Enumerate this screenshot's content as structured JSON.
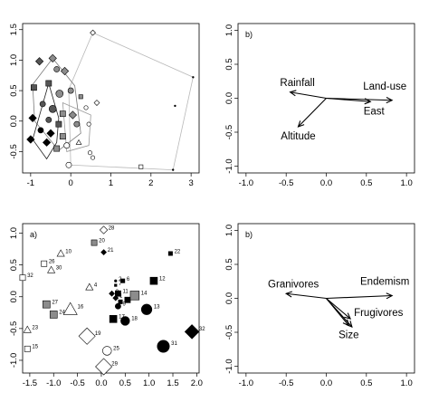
{
  "chart_data": [
    {
      "type": "scatter",
      "panel_label": "",
      "xlim": [
        -1.2,
        3.2
      ],
      "ylim": [
        -0.85,
        1.6
      ],
      "x_ticks": [
        -1,
        0,
        1,
        2,
        3
      ],
      "y_ticks": [
        -0.5,
        0.0,
        0.5,
        1.0,
        1.5
      ],
      "x_tick_labels": [
        "-1",
        "0",
        "1",
        "2",
        "3"
      ],
      "y_tick_labels": [
        "-0.5",
        "0.0",
        "0.5",
        "1.0",
        "1.5"
      ],
      "hulls": [
        {
          "shade": "light",
          "points": [
            [
              0.55,
              1.45
            ],
            [
              3.05,
              0.72
            ],
            [
              2.55,
              -0.8
            ],
            [
              0.0,
              -0.72
            ],
            [
              -0.05,
              0.52
            ]
          ]
        },
        {
          "shade": "gray",
          "points": [
            [
              -0.45,
              1.03
            ],
            [
              0.1,
              0.58
            ],
            [
              0.25,
              -0.2
            ],
            [
              -0.3,
              -0.48
            ],
            [
              -0.9,
              0.0
            ],
            [
              -0.95,
              0.6
            ]
          ]
        },
        {
          "shade": "dark",
          "points": [
            [
              -0.55,
              0.62
            ],
            [
              -0.3,
              0.05
            ],
            [
              -0.35,
              -0.35
            ],
            [
              -0.6,
              -0.62
            ],
            [
              -0.95,
              -0.3
            ]
          ]
        },
        {
          "shade": "outline",
          "points": [
            [
              -0.2,
              0.3
            ],
            [
              0.5,
              0.1
            ],
            [
              0.45,
              -0.4
            ],
            [
              -0.1,
              -0.5
            ]
          ]
        }
      ],
      "points": [
        {
          "x": 0.55,
          "y": 1.45,
          "shape": "diamond",
          "fill": "white",
          "size": 3
        },
        {
          "x": -0.45,
          "y": 1.03,
          "shape": "diamond",
          "fill": "gray",
          "size": 4
        },
        {
          "x": -0.78,
          "y": 0.98,
          "shape": "diamond",
          "fill": "darkgray",
          "size": 4
        },
        {
          "x": -0.35,
          "y": 0.85,
          "shape": "circle",
          "fill": "gray",
          "size": 4
        },
        {
          "x": -0.15,
          "y": 0.82,
          "shape": "diamond",
          "fill": "gray",
          "size": 4
        },
        {
          "x": -0.92,
          "y": 0.55,
          "shape": "square",
          "fill": "darkgray",
          "size": 4
        },
        {
          "x": -0.55,
          "y": 0.62,
          "shape": "square",
          "fill": "darkgray",
          "size": 4
        },
        {
          "x": -0.28,
          "y": 0.45,
          "shape": "circle",
          "fill": "gray",
          "size": 5
        },
        {
          "x": 0.0,
          "y": 0.5,
          "shape": "circle",
          "fill": "gray",
          "size": 4
        },
        {
          "x": 0.25,
          "y": 0.4,
          "shape": "square",
          "fill": "gray",
          "size": 3
        },
        {
          "x": 0.65,
          "y": 0.3,
          "shape": "diamond",
          "fill": "white",
          "size": 3
        },
        {
          "x": 0.38,
          "y": 0.22,
          "shape": "circle",
          "fill": "white",
          "size": 3
        },
        {
          "x": -0.7,
          "y": 0.28,
          "shape": "circle",
          "fill": "darkgray",
          "size": 4
        },
        {
          "x": -0.45,
          "y": 0.2,
          "shape": "circle",
          "fill": "darkgray",
          "size": 5
        },
        {
          "x": -0.2,
          "y": 0.12,
          "shape": "square",
          "fill": "gray",
          "size": 4
        },
        {
          "x": 0.05,
          "y": 0.1,
          "shape": "diamond",
          "fill": "gray",
          "size": 4
        },
        {
          "x": -0.95,
          "y": 0.05,
          "shape": "diamond",
          "fill": "black",
          "size": 4
        },
        {
          "x": -0.55,
          "y": 0.02,
          "shape": "circle",
          "fill": "darkgray",
          "size": 4
        },
        {
          "x": -0.3,
          "y": -0.05,
          "shape": "square",
          "fill": "darkgray",
          "size": 4
        },
        {
          "x": 0.15,
          "y": -0.05,
          "shape": "circle",
          "fill": "gray",
          "size": 4
        },
        {
          "x": 0.45,
          "y": -0.05,
          "shape": "circle",
          "fill": "white",
          "size": 3
        },
        {
          "x": -0.75,
          "y": -0.15,
          "shape": "circle",
          "fill": "black",
          "size": 4
        },
        {
          "x": -0.5,
          "y": -0.2,
          "shape": "diamond",
          "fill": "black",
          "size": 4
        },
        {
          "x": -0.2,
          "y": -0.25,
          "shape": "square",
          "fill": "gray",
          "size": 4
        },
        {
          "x": -1.0,
          "y": -0.3,
          "shape": "diamond",
          "fill": "black",
          "size": 4
        },
        {
          "x": -0.6,
          "y": -0.35,
          "shape": "diamond",
          "fill": "black",
          "size": 4
        },
        {
          "x": -0.35,
          "y": -0.45,
          "shape": "square",
          "fill": "gray",
          "size": 4
        },
        {
          "x": -0.1,
          "y": -0.4,
          "shape": "circle",
          "fill": "white",
          "size": 4
        },
        {
          "x": 0.2,
          "y": -0.35,
          "shape": "triangle",
          "fill": "white",
          "size": 3
        },
        {
          "x": 0.48,
          "y": -0.52,
          "shape": "circle",
          "fill": "white",
          "size": 3
        },
        {
          "x": 0.55,
          "y": -0.6,
          "shape": "circle",
          "fill": "white",
          "size": 3
        },
        {
          "x": -0.05,
          "y": -0.72,
          "shape": "circle",
          "fill": "white",
          "size": 4
        },
        {
          "x": 1.75,
          "y": -0.75,
          "shape": "square",
          "fill": "white",
          "size": 3
        },
        {
          "x": 2.55,
          "y": -0.8,
          "shape": "dot",
          "fill": "black",
          "size": 1
        },
        {
          "x": 3.05,
          "y": 0.72,
          "shape": "dot",
          "fill": "black",
          "size": 1
        },
        {
          "x": 2.6,
          "y": 0.25,
          "shape": "dot",
          "fill": "black",
          "size": 1
        }
      ]
    },
    {
      "type": "vector",
      "panel_label": "b)",
      "xlim": [
        -1.1,
        1.1
      ],
      "ylim": [
        -1.1,
        1.1
      ],
      "x_ticks": [
        -1,
        -0.5,
        0,
        0.5,
        1
      ],
      "y_ticks": [
        -1,
        -0.5,
        0,
        0.5,
        1
      ],
      "x_tick_labels": [
        "-1.0",
        "-0.5",
        "0.0",
        "0.5",
        "1.0"
      ],
      "y_tick_labels": [
        "-1.0",
        "-0.5",
        "0.0",
        "0.5",
        "1.0"
      ],
      "vectors": [
        {
          "name": "Rainfall",
          "x": -0.45,
          "y": 0.09
        },
        {
          "name": "Land-use",
          "x": 0.82,
          "y": -0.03
        },
        {
          "name": "East",
          "x": 0.55,
          "y": -0.05
        },
        {
          "name": "Altitude",
          "x": -0.35,
          "y": -0.42
        }
      ]
    },
    {
      "type": "scatter",
      "panel_label": "a)",
      "xlim": [
        -1.65,
        2.05
      ],
      "ylim": [
        -1.2,
        1.15
      ],
      "x_ticks": [
        -1.5,
        -1.0,
        -0.5,
        0.0,
        0.5,
        1.0,
        1.5,
        2.0
      ],
      "y_ticks": [
        -1.0,
        -0.5,
        0.0,
        0.5,
        1.0
      ],
      "x_tick_labels": [
        "-1.5",
        "-1.0",
        "-0.5",
        "0.0",
        "0.5",
        "1.0",
        "1.5",
        "2.0"
      ],
      "y_tick_labels": [
        "-1.0",
        "-0.5",
        "0.0",
        "0.5",
        "1.0"
      ],
      "points": [
        {
          "label": "28",
          "x": 0.05,
          "y": 1.05,
          "shape": "diamond",
          "fill": "white",
          "size": 4
        },
        {
          "label": "20",
          "x": -0.15,
          "y": 0.85,
          "shape": "square",
          "fill": "gray",
          "size": 4
        },
        {
          "label": "21",
          "x": 0.05,
          "y": 0.7,
          "shape": "diamond",
          "fill": "black",
          "size": 3
        },
        {
          "label": "22",
          "x": 1.45,
          "y": 0.68,
          "shape": "square",
          "fill": "black",
          "size": 3
        },
        {
          "label": "10",
          "x": -0.85,
          "y": 0.68,
          "shape": "triangle",
          "fill": "white",
          "size": 4
        },
        {
          "label": "26",
          "x": -1.2,
          "y": 0.52,
          "shape": "square",
          "fill": "white",
          "size": 4
        },
        {
          "label": "30",
          "x": -1.05,
          "y": 0.42,
          "shape": "triangle",
          "fill": "white",
          "size": 4
        },
        {
          "label": "32",
          "x": -1.65,
          "y": 0.3,
          "shape": "square",
          "fill": "white",
          "size": 4
        },
        {
          "label": "4",
          "x": -0.25,
          "y": 0.15,
          "shape": "triangle",
          "fill": "white",
          "size": 4
        },
        {
          "label": "2",
          "x": 0.3,
          "y": 0.25,
          "shape": "circle",
          "fill": "black",
          "size": 2
        },
        {
          "label": "6",
          "x": 0.45,
          "y": 0.25,
          "shape": "square",
          "fill": "black",
          "size": 3
        },
        {
          "label": "12",
          "x": 1.1,
          "y": 0.25,
          "shape": "square",
          "fill": "black",
          "size": 5
        },
        {
          "label": "7",
          "x": 0.3,
          "y": 0.18,
          "shape": "square",
          "fill": "black",
          "size": 2
        },
        {
          "label": "3",
          "x": 0.22,
          "y": 0.05,
          "shape": "diamond",
          "fill": "black",
          "size": 3
        },
        {
          "label": "11",
          "x": 0.35,
          "y": 0.05,
          "shape": "square",
          "fill": "black",
          "size": 4
        },
        {
          "label": "1",
          "x": 0.3,
          "y": -0.02,
          "shape": "diamond",
          "fill": "black",
          "size": 3
        },
        {
          "label": "5",
          "x": 0.4,
          "y": -0.08,
          "shape": "square",
          "fill": "black",
          "size": 3
        },
        {
          "label": "8",
          "x": 0.55,
          "y": -0.05,
          "shape": "square",
          "fill": "black",
          "size": 4
        },
        {
          "label": "14",
          "x": 0.7,
          "y": 0.02,
          "shape": "square",
          "fill": "gray",
          "size": 6
        },
        {
          "label": "9",
          "x": 0.35,
          "y": -0.15,
          "shape": "circle",
          "fill": "black",
          "size": 4
        },
        {
          "label": "27",
          "x": -1.15,
          "y": -0.12,
          "shape": "square",
          "fill": "gray",
          "size": 5
        },
        {
          "label": "24",
          "x": -1.0,
          "y": -0.28,
          "shape": "square",
          "fill": "gray",
          "size": 5
        },
        {
          "label": "16",
          "x": -0.65,
          "y": -0.2,
          "shape": "triangle",
          "fill": "white",
          "size": 7
        },
        {
          "label": "17",
          "x": 0.25,
          "y": -0.35,
          "shape": "square",
          "fill": "black",
          "size": 5
        },
        {
          "label": "18",
          "x": 0.5,
          "y": -0.38,
          "shape": "circle",
          "fill": "black",
          "size": 6
        },
        {
          "label": "13",
          "x": 0.95,
          "y": -0.2,
          "shape": "circle",
          "fill": "black",
          "size": 7
        },
        {
          "label": "23",
          "x": -1.55,
          "y": -0.52,
          "shape": "triangle",
          "fill": "white",
          "size": 4
        },
        {
          "label": "19",
          "x": -0.3,
          "y": -0.62,
          "shape": "diamond",
          "fill": "white",
          "size": 8
        },
        {
          "label": "32",
          "x": 1.9,
          "y": -0.55,
          "shape": "diamond",
          "fill": "black",
          "size": 7
        },
        {
          "label": "31",
          "x": 1.3,
          "y": -0.78,
          "shape": "circle",
          "fill": "black",
          "size": 8
        },
        {
          "label": "15",
          "x": -1.55,
          "y": -0.82,
          "shape": "square",
          "fill": "white",
          "size": 4
        },
        {
          "label": "25",
          "x": 0.12,
          "y": -0.85,
          "shape": "circle",
          "fill": "white",
          "size": 6
        },
        {
          "label": "29",
          "x": 0.05,
          "y": -1.1,
          "shape": "diamond",
          "fill": "white",
          "size": 8
        }
      ]
    },
    {
      "type": "vector",
      "panel_label": "b)",
      "xlim": [
        -1.1,
        1.1
      ],
      "ylim": [
        -1.1,
        1.1
      ],
      "x_ticks": [
        -1,
        -0.5,
        0,
        0.5,
        1
      ],
      "y_ticks": [
        -1,
        -0.5,
        0,
        0.5,
        1
      ],
      "x_tick_labels": [
        "-1.0",
        "-0.5",
        "0.0",
        "0.5",
        "1.0"
      ],
      "y_tick_labels": [
        "-1.0",
        "-0.5",
        "0.0",
        "0.5",
        "1.0"
      ],
      "vectors": [
        {
          "name": "Granivores",
          "x": -0.5,
          "y": 0.07
        },
        {
          "name": "Endemism",
          "x": 0.82,
          "y": 0.04
        },
        {
          "name": "Frugivores",
          "x": 0.3,
          "y": -0.3
        },
        {
          "name": "Size",
          "x": 0.28,
          "y": -0.4
        },
        {
          "name": "",
          "x": 0.32,
          "y": -0.42
        }
      ]
    }
  ]
}
